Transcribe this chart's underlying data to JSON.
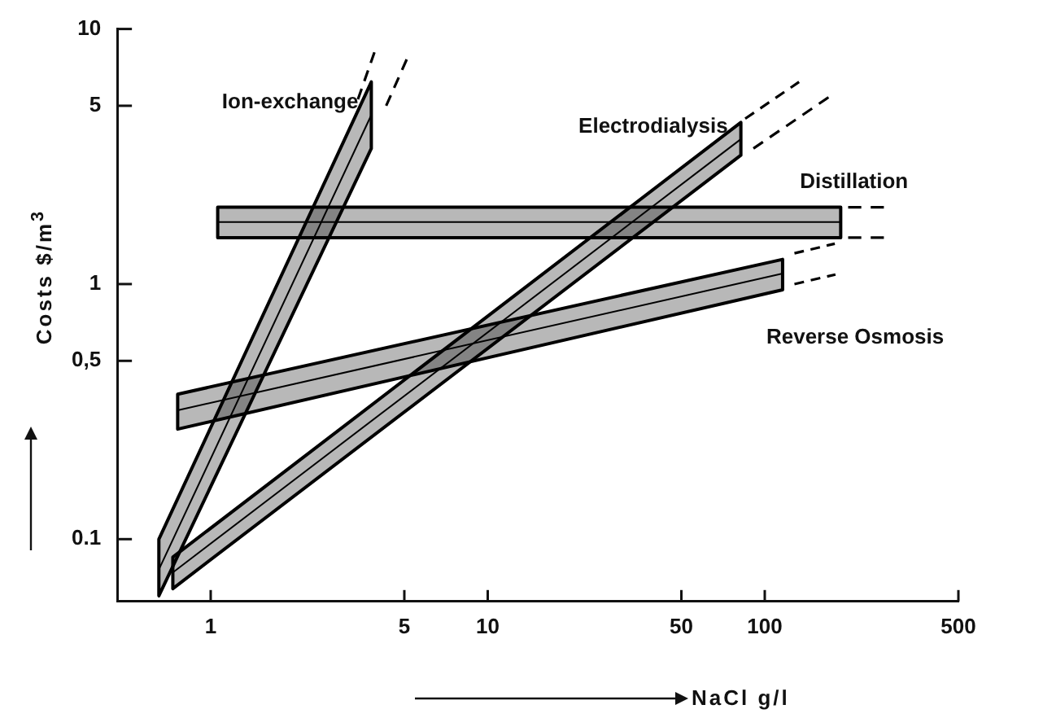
{
  "chart_data": {
    "type": "line",
    "xlabel": "NaCl  g/l",
    "ylabel": "Costs  $/m$^{3}$",
    "log": "xy",
    "grid": false,
    "legend": false,
    "marker": "none",
    "xlim": [
      0.46,
      500
    ],
    "xticks": [
      1,
      5,
      10,
      50,
      100,
      500
    ],
    "ylim": [
      0.057,
      10
    ],
    "yticks": [
      0.1,
      {
        "value": 0.5,
        "label": "0,5"
      },
      1,
      5,
      10
    ],
    "series": [
      {
        "name": "Ion-exchange",
        "color": "#000000",
        "x": [
          0.65,
          3.8
        ],
        "values": [
          0.076,
          4.6
        ],
        "lower": [
          0.06,
          3.4
        ],
        "upper": [
          0.1,
          6.2
        ]
      },
      {
        "name": "Electrodialysis",
        "color": "#000000",
        "x": [
          0.73,
          82
        ],
        "values": [
          0.074,
          3.7
        ],
        "lower": [
          0.064,
          3.2
        ],
        "upper": [
          0.085,
          4.3
        ]
      },
      {
        "name": "Distillation",
        "color": "#000000",
        "x": [
          1.06,
          188
        ],
        "values": [
          1.75,
          1.75
        ],
        "lower": [
          1.52,
          1.52
        ],
        "upper": [
          2.0,
          2.0
        ]
      },
      {
        "name": "Reverse Osmosis",
        "color": "#000000",
        "x": [
          0.76,
          116
        ],
        "values": [
          0.32,
          1.1
        ],
        "lower": [
          0.27,
          0.95
        ],
        "upper": [
          0.37,
          1.25
        ]
      },
      {
        "color": "#000000",
        "line_style": "dashed",
        "x": [
          3.4,
          3.9
        ],
        "values": [
          5.3,
          8.1
        ]
      },
      {
        "color": "#000000",
        "line_style": "dashed",
        "x": [
          4.3,
          5.1
        ],
        "values": [
          5.0,
          7.6
        ]
      },
      {
        "color": "#000000",
        "line_style": "dashed",
        "x": [
          85,
          133
        ],
        "values": [
          4.45,
          6.2
        ]
      },
      {
        "color": "#000000",
        "line_style": "dashed",
        "x": [
          91,
          170
        ],
        "values": [
          3.4,
          5.4
        ]
      },
      {
        "color": "#000000",
        "line_style": "dashed",
        "x": [
          200,
          272
        ],
        "values": [
          2.0,
          2.0
        ]
      },
      {
        "color": "#000000",
        "line_style": "dashed",
        "x": [
          200,
          272
        ],
        "values": [
          1.52,
          1.52
        ]
      },
      {
        "color": "#000000",
        "line_style": "dashed",
        "x": [
          128,
          179
        ],
        "values": [
          1.32,
          1.44
        ]
      },
      {
        "color": "#000000",
        "line_style": "dashed",
        "x": [
          128,
          180
        ],
        "values": [
          1.0,
          1.09
        ]
      }
    ]
  }
}
